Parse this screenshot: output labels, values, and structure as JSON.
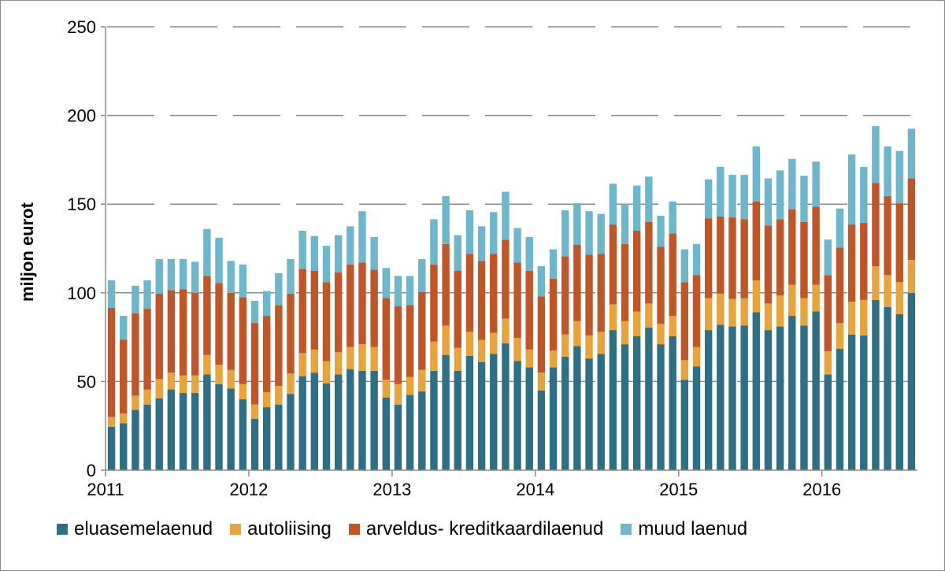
{
  "chart_data": {
    "type": "bar",
    "stacked": true,
    "title": "",
    "xlabel": "",
    "ylabel": "miljon eurot",
    "ylim": [
      0,
      250
    ],
    "yticks": [
      0,
      50,
      100,
      150,
      200,
      250
    ],
    "xticks": [
      "2011",
      "2012",
      "2013",
      "2014",
      "2015",
      "2016"
    ],
    "grid": "horizontal dashed",
    "legend_position": "bottom",
    "months_per_year": 12,
    "series": [
      {
        "name": "eluasemelaenud",
        "color": "#2e6f86",
        "values": [
          24.5,
          26.5,
          34,
          37,
          40.5,
          45.5,
          43.5,
          43.5,
          54,
          48.5,
          46,
          40,
          29,
          35.5,
          37,
          43,
          53,
          55,
          49,
          54,
          57,
          56,
          56,
          41,
          37,
          42.5,
          44.5,
          56,
          65,
          56,
          64.5,
          61,
          65.5,
          71.5,
          61.5,
          58,
          45,
          58,
          64,
          70,
          63,
          65.5,
          79,
          71,
          75.5,
          80.5,
          71,
          75.5,
          51,
          58.5,
          79,
          82,
          81,
          81.5,
          89,
          79,
          81,
          87,
          81.5,
          89.5,
          54,
          68.5,
          76.5,
          76,
          96,
          92,
          88,
          100
        ]
      },
      {
        "name": "autoliising",
        "color": "#e8a33a",
        "values": [
          5.5,
          5.5,
          8,
          8.5,
          11,
          9.5,
          10,
          10,
          11,
          11,
          10.5,
          8.5,
          8,
          8.5,
          10.5,
          11.5,
          13,
          13,
          12.5,
          12.5,
          12.5,
          15,
          13.5,
          10,
          11.5,
          10,
          12,
          16.5,
          16.5,
          13,
          13.5,
          12.5,
          12,
          14,
          13,
          10,
          10,
          9.5,
          12.5,
          14,
          13,
          12.5,
          14.5,
          13,
          14,
          13.5,
          11.5,
          11.5,
          11,
          11,
          18,
          17.5,
          15.5,
          15.5,
          18,
          15,
          17.5,
          17.5,
          15.5,
          15,
          13,
          14.5,
          18.5,
          20,
          19,
          18,
          18,
          18.5
        ]
      },
      {
        "name": "arveldus- kreditkaardilaenud",
        "color": "#c05528",
        "values": [
          61.5,
          41.5,
          46.5,
          45.5,
          48,
          46.5,
          48.5,
          46.5,
          44.5,
          46,
          43.5,
          49,
          46,
          43,
          45.5,
          45,
          47.5,
          44.5,
          44.5,
          45,
          46.5,
          46,
          43.5,
          46,
          44,
          40.5,
          44,
          43.5,
          46,
          43.5,
          44,
          44.5,
          44.5,
          44.5,
          42.5,
          44.5,
          43,
          40.5,
          44,
          43,
          45.5,
          44,
          45,
          43.5,
          45.5,
          46,
          43.5,
          46.5,
          44,
          40.5,
          45,
          43.5,
          46,
          44.5,
          44.5,
          44,
          43,
          42.5,
          43,
          44,
          43,
          42.5,
          43.5,
          43.5,
          47,
          44.5,
          44.5,
          46
        ]
      },
      {
        "name": "muud laenud",
        "color": "#6db6cb",
        "values": [
          15.5,
          13.5,
          15.5,
          16,
          19.5,
          17.5,
          17,
          17.5,
          26.5,
          25.5,
          18,
          18.5,
          12.5,
          14,
          18,
          19.5,
          21.5,
          19.5,
          20.5,
          21,
          21.5,
          29,
          18.5,
          17,
          17,
          16.5,
          18.5,
          25.5,
          27,
          20,
          24.5,
          19.5,
          23.5,
          27,
          19.5,
          19,
          17,
          16.5,
          26,
          23.5,
          24.5,
          22.5,
          23,
          22.5,
          25.5,
          25.5,
          17.5,
          18,
          18.5,
          17.5,
          22,
          28,
          24,
          25,
          31,
          26.5,
          27.5,
          28.5,
          26,
          25.5,
          20,
          22,
          39.5,
          31.5,
          32,
          28,
          29.5,
          28
        ]
      }
    ]
  }
}
